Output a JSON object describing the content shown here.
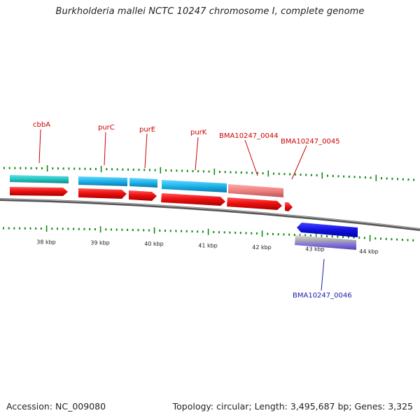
{
  "title": "Burkholderia mallei NCTC 10247 chromosome I, complete genome",
  "footer": {
    "accession": "Accession: NC_009080",
    "topology": "Topology: circular; Length: 3,495,687 bp; Genes: 3,325"
  },
  "colors": {
    "forward_label": "#cc0000",
    "reverse_label": "#1a1aaa",
    "cds_forward": "#ee1111",
    "gene_forward_teal": "#33cccc",
    "gene_forward_blue": "#22bbee",
    "gene_forward_pink": "#ee8888",
    "cds_reverse": "#1111dd",
    "gene_reverse": "#7766cc",
    "ticks": "#118811",
    "backbone": "#777777"
  },
  "axis": {
    "tick_labels": [
      "38 kbp",
      "39 kbp",
      "40 kbp",
      "41 kbp",
      "42 kbp",
      "43 kbp",
      "44 kbp"
    ]
  },
  "genes": [
    {
      "label": "cbbA",
      "strand": "forward",
      "gene_color": "teal"
    },
    {
      "label": "purC",
      "strand": "forward",
      "gene_color": "blue"
    },
    {
      "label": "purE",
      "strand": "forward",
      "gene_color": "blue"
    },
    {
      "label": "purK",
      "strand": "forward",
      "gene_color": "blue"
    },
    {
      "label": "BMA10247_0044",
      "strand": "forward",
      "gene_color": "pink"
    },
    {
      "label": "BMA10247_0045",
      "strand": "forward",
      "gene_color": "none"
    },
    {
      "label": "BMA10247_0046",
      "strand": "reverse",
      "gene_color": "purple"
    }
  ]
}
